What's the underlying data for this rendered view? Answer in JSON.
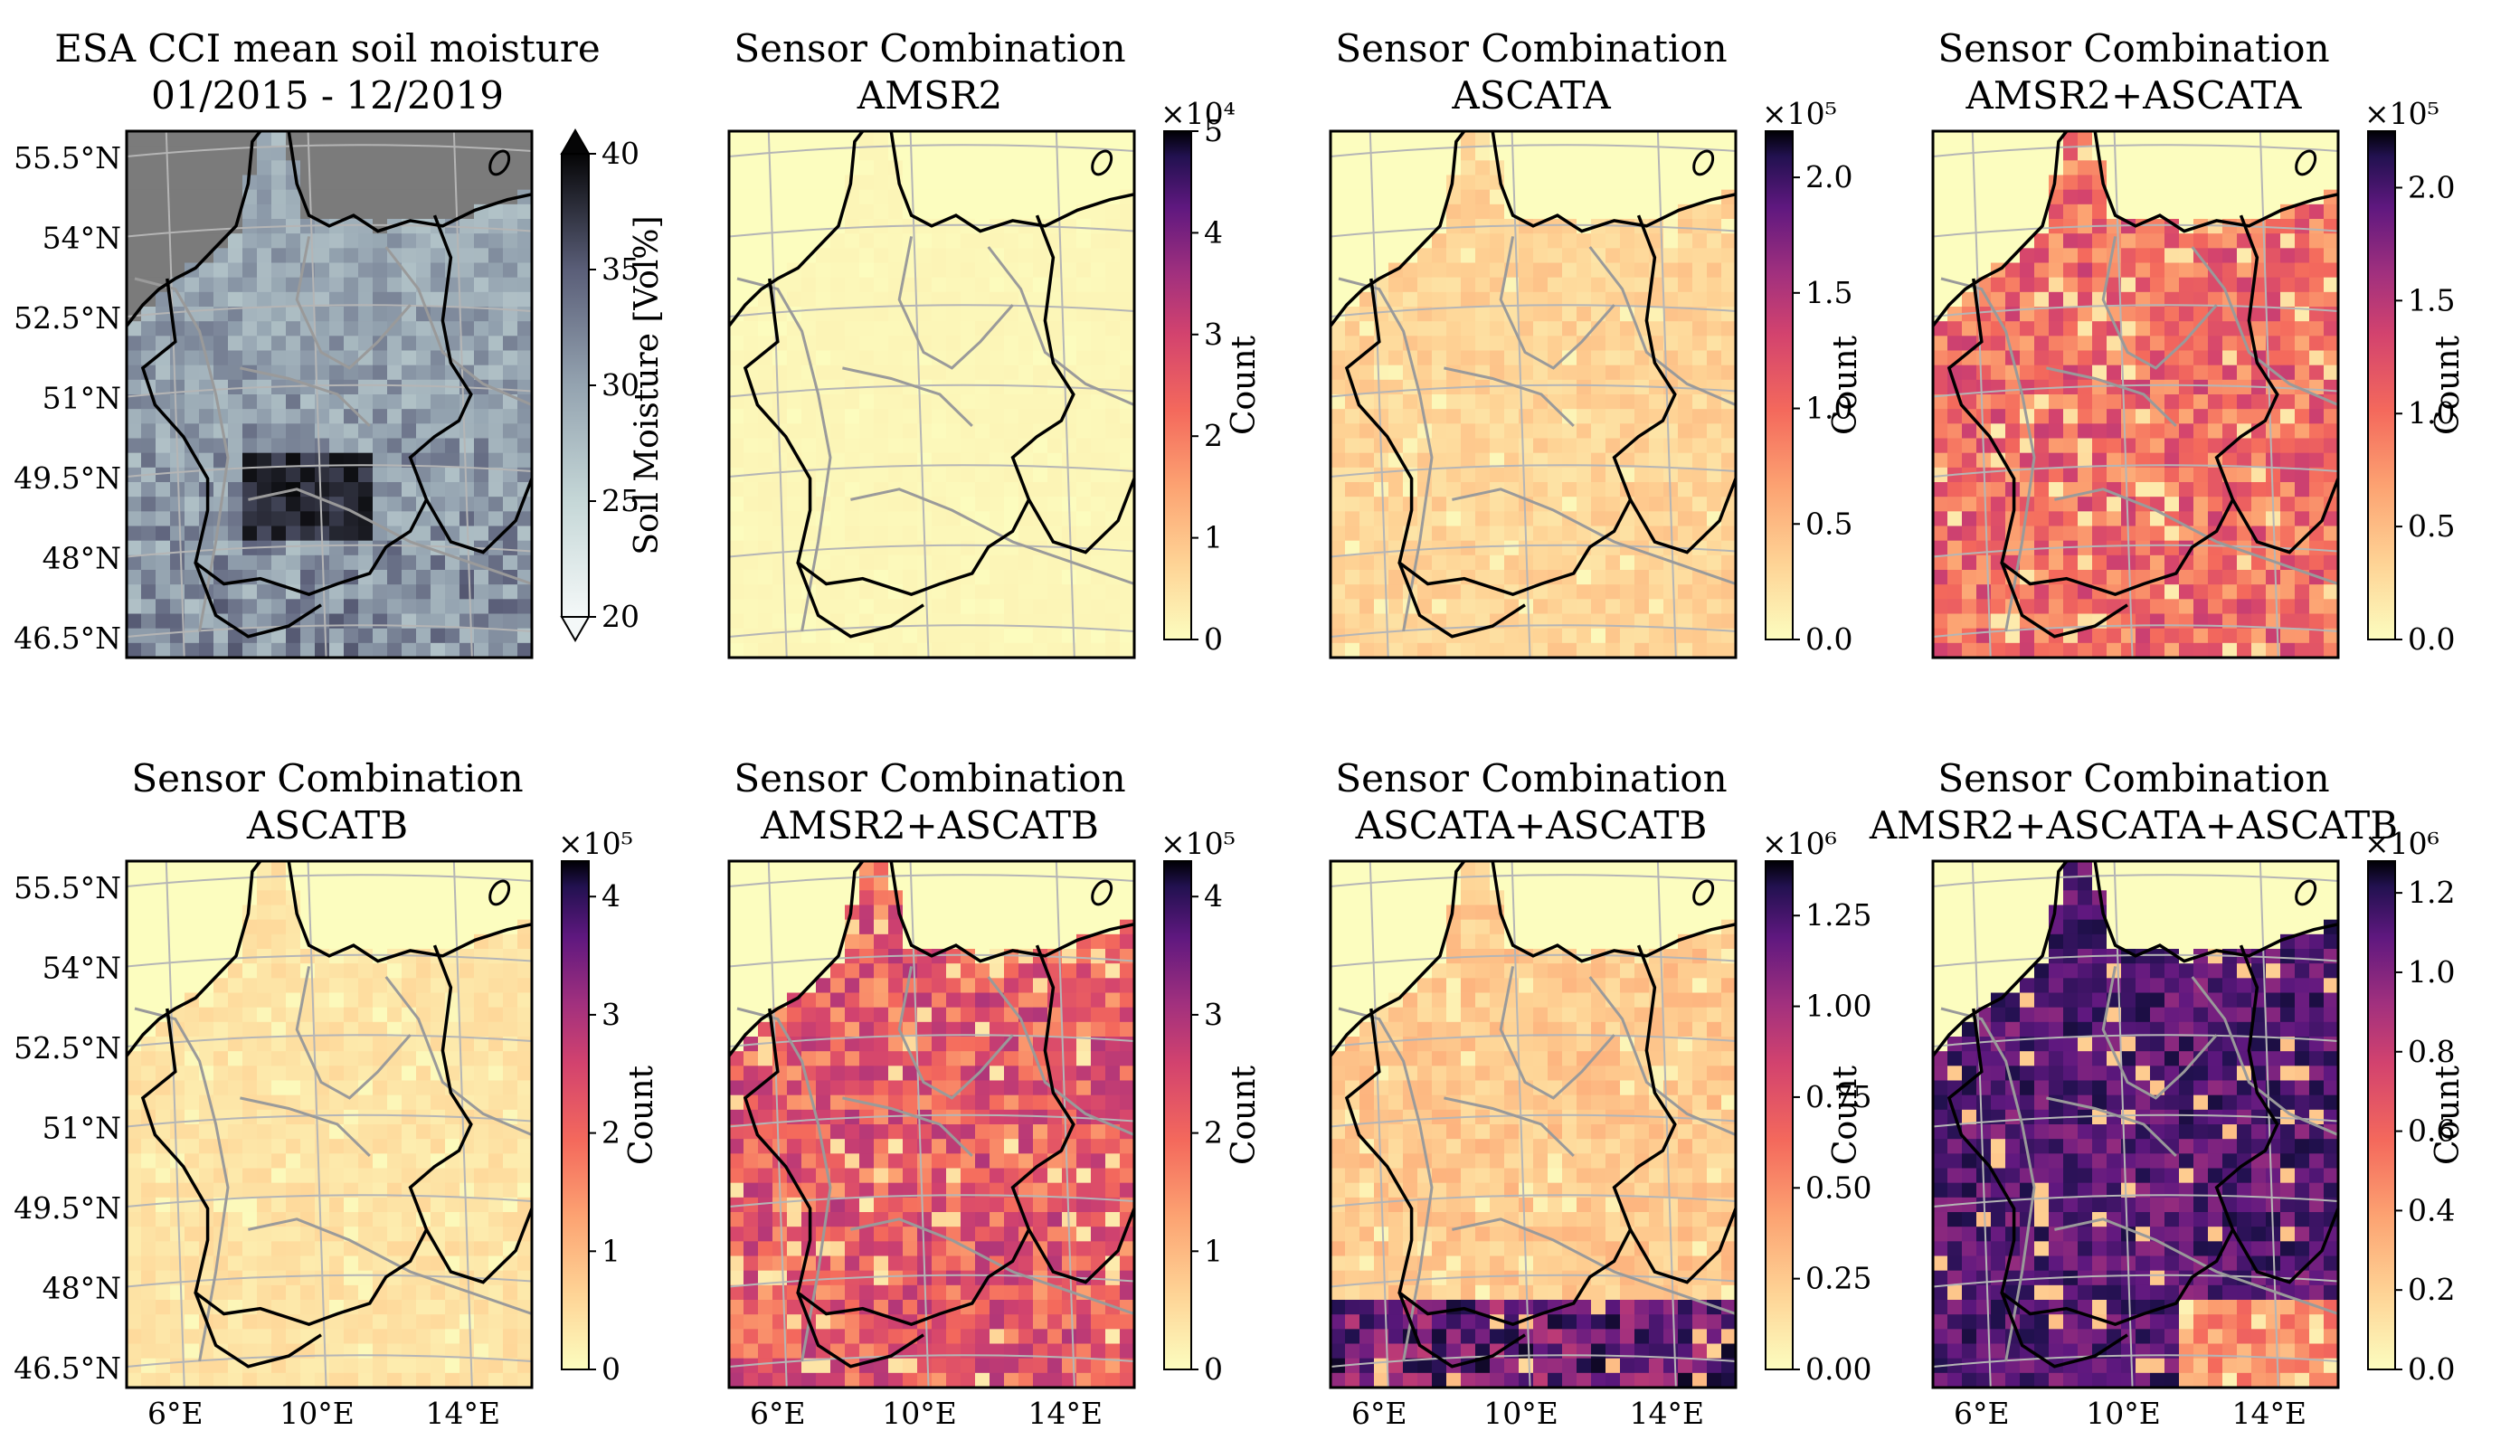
{
  "figure": "soil moisture and sensor combination count maps",
  "lat_ticks": [
    "55.5°N",
    "54°N",
    "52.5°N",
    "51°N",
    "49.5°N",
    "48°N",
    "46.5°N"
  ],
  "lon_ticks": [
    "6°E",
    "10°E",
    "14°E"
  ],
  "colors": {
    "border": "#000000",
    "rivers": "#9a9a9a",
    "grid": "#b5b5b5",
    "sea_moisture": "#7b7b7b",
    "magma_low": "#fcfdbf",
    "magma_high": "#000004"
  },
  "chart_data": [
    {
      "type": "heatmap",
      "id": "p1",
      "title_line1": "ESA CCI mean soil moisture",
      "title_line2": "01/2015 - 12/2019",
      "colormap": "bone",
      "colorbar_label": "Soil Moisture [Vol%]",
      "colorbar_ticks": [
        "40",
        "35",
        "30",
        "25",
        "20"
      ],
      "colorbar_exponent": "",
      "vmin": 20,
      "vmax": 40,
      "extend": "both",
      "overall_level": 0.45,
      "sea_mode": "gray",
      "show_lat": true,
      "show_lon": false
    },
    {
      "type": "heatmap",
      "id": "p2",
      "title_line1": "Sensor Combination",
      "title_line2": "AMSR2",
      "colormap": "magma_r",
      "colorbar_label": "Count",
      "colorbar_ticks": [
        "5",
        "4",
        "3",
        "2",
        "1",
        "0"
      ],
      "colorbar_exponent": "×10⁴",
      "vmin": 0,
      "vmax": 50000,
      "overall_level": 0.02,
      "sea_mode": "light",
      "show_lat": false,
      "show_lon": false
    },
    {
      "type": "heatmap",
      "id": "p3",
      "title_line1": "Sensor Combination",
      "title_line2": "ASCATA",
      "colormap": "magma_r",
      "colorbar_label": "Count",
      "colorbar_ticks": [
        "2.0",
        "1.5",
        "1.0",
        "0.5",
        "0.0"
      ],
      "colorbar_exponent": "×10⁵",
      "vmin": 0,
      "vmax": 220000,
      "overall_level": 0.12,
      "sea_mode": "light",
      "show_lat": false,
      "show_lon": false
    },
    {
      "type": "heatmap",
      "id": "p4",
      "title_line1": "Sensor Combination",
      "title_line2": "AMSR2+ASCATA",
      "colormap": "magma_r",
      "colorbar_label": "Count",
      "colorbar_ticks": [
        "2.0",
        "1.5",
        "1.0",
        "0.5",
        "0.0"
      ],
      "colorbar_exponent": "×10⁵",
      "vmin": 0,
      "vmax": 225000,
      "overall_level": 0.38,
      "sea_mode": "light",
      "show_lat": false,
      "show_lon": false
    },
    {
      "type": "heatmap",
      "id": "p5",
      "title_line1": "Sensor Combination",
      "title_line2": "ASCATB",
      "colormap": "magma_r",
      "colorbar_label": "Count",
      "colorbar_ticks": [
        "4",
        "3",
        "2",
        "1",
        "0"
      ],
      "colorbar_exponent": "×10⁵",
      "vmin": 0,
      "vmax": 430000,
      "overall_level": 0.08,
      "sea_mode": "light",
      "show_lat": true,
      "show_lon": true
    },
    {
      "type": "heatmap",
      "id": "p6",
      "title_line1": "Sensor Combination",
      "title_line2": "AMSR2+ASCATB",
      "colormap": "magma_r",
      "colorbar_label": "Count",
      "colorbar_ticks": [
        "4",
        "3",
        "2",
        "1",
        "0"
      ],
      "colorbar_exponent": "×10⁵",
      "vmin": 0,
      "vmax": 430000,
      "overall_level": 0.42,
      "sea_mode": "light",
      "show_lat": false,
      "show_lon": true
    },
    {
      "type": "heatmap",
      "id": "p7",
      "title_line1": "Sensor Combination",
      "title_line2": "ASCATA+ASCATB",
      "colormap": "magma_r",
      "colorbar_label": "Count",
      "colorbar_ticks": [
        "1.25",
        "1.00",
        "0.75",
        "0.50",
        "0.25",
        "0.00"
      ],
      "colorbar_exponent": "×10⁶",
      "vmin": 0,
      "vmax": 1400000,
      "overall_level": 0.15,
      "sea_mode": "light",
      "show_lat": false,
      "show_lon": true
    },
    {
      "type": "heatmap",
      "id": "p8",
      "title_line1": "Sensor Combination",
      "title_line2": "AMSR2+ASCATA+ASCATB",
      "colormap": "magma_r",
      "colorbar_label": "Count",
      "colorbar_ticks": [
        "1.2",
        "1.0",
        "0.8",
        "0.6",
        "0.4",
        "0.2",
        "0.0"
      ],
      "colorbar_exponent": "×10⁶",
      "vmin": 0,
      "vmax": 1280000,
      "overall_level": 0.65,
      "sea_mode": "light",
      "show_lat": false,
      "show_lon": true
    }
  ]
}
